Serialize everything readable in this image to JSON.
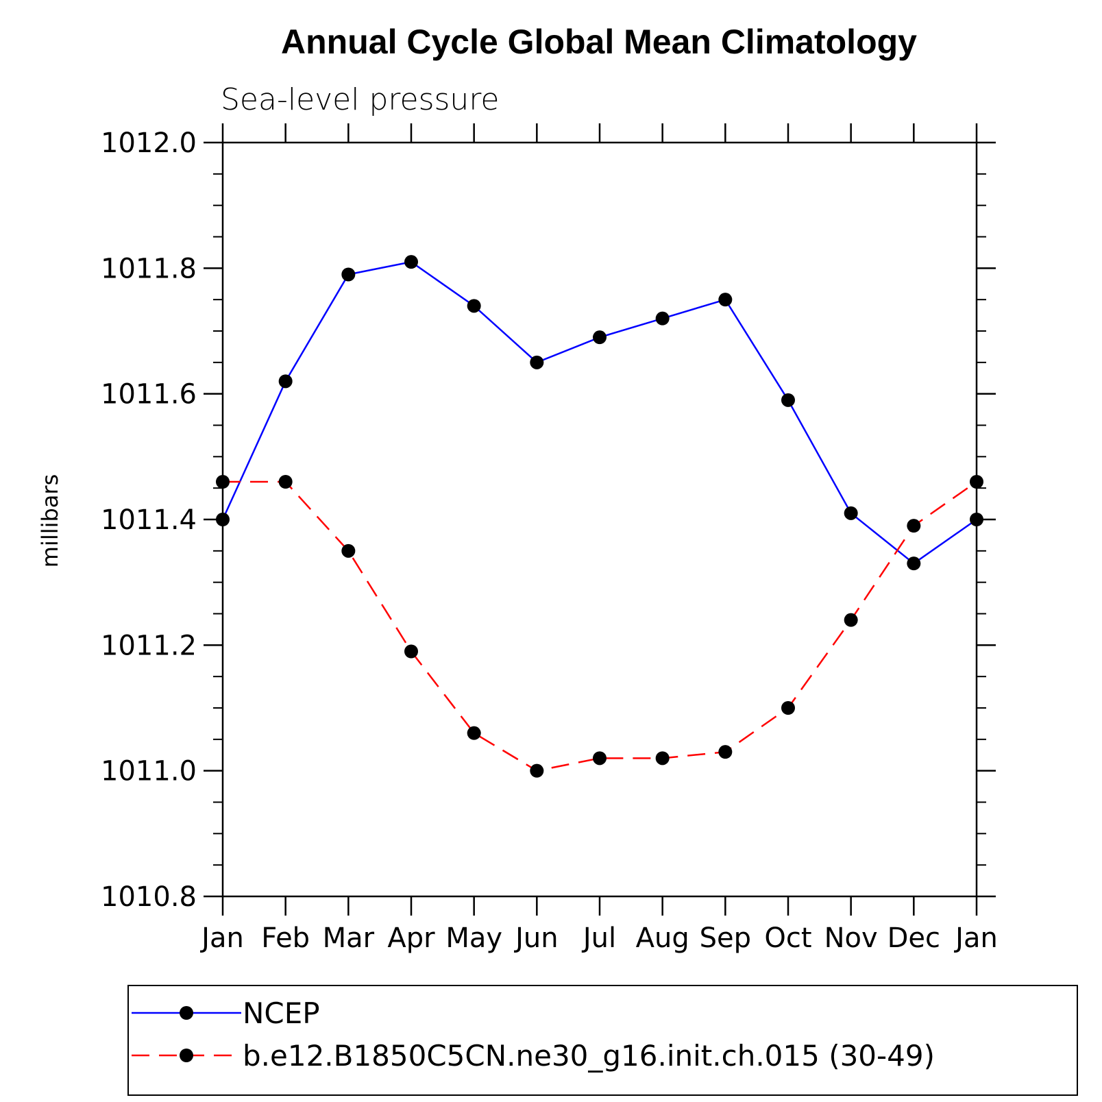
{
  "chart_data": {
    "type": "line",
    "title": "Annual Cycle Global Mean Climatology",
    "subtitle": "Sea-level pressure",
    "xlabel": "",
    "ylabel": "millibars",
    "categories": [
      "Jan",
      "Feb",
      "Mar",
      "Apr",
      "May",
      "Jun",
      "Jul",
      "Aug",
      "Sep",
      "Oct",
      "Nov",
      "Dec",
      "Jan"
    ],
    "ylim": [
      1010.8,
      1012.0
    ],
    "yticks": [
      "1010.8",
      "1011.0",
      "1011.2",
      "1011.4",
      "1011.6",
      "1011.8",
      "1012.0"
    ],
    "ytick_values": [
      1010.8,
      1011.0,
      1011.2,
      1011.4,
      1011.6,
      1011.8,
      1012.0
    ],
    "grid": false,
    "legend_position": "bottom",
    "series": [
      {
        "name": "NCEP",
        "color": "#0000ff",
        "dash": "solid",
        "marker": "filled-circle",
        "values": [
          1011.4,
          1011.62,
          1011.79,
          1011.81,
          1011.74,
          1011.65,
          1011.69,
          1011.72,
          1011.75,
          1011.59,
          1011.41,
          1011.33,
          1011.4
        ]
      },
      {
        "name": "b.e12.B1850C5CN.ne30_g16.init.ch.015 (30-49)",
        "color": "#ff0000",
        "dash": "dashed",
        "marker": "filled-circle",
        "values": [
          1011.46,
          1011.46,
          1011.35,
          1011.19,
          1011.06,
          1011.0,
          1011.02,
          1011.02,
          1011.03,
          1011.1,
          1011.24,
          1011.39,
          1011.46
        ]
      }
    ]
  }
}
